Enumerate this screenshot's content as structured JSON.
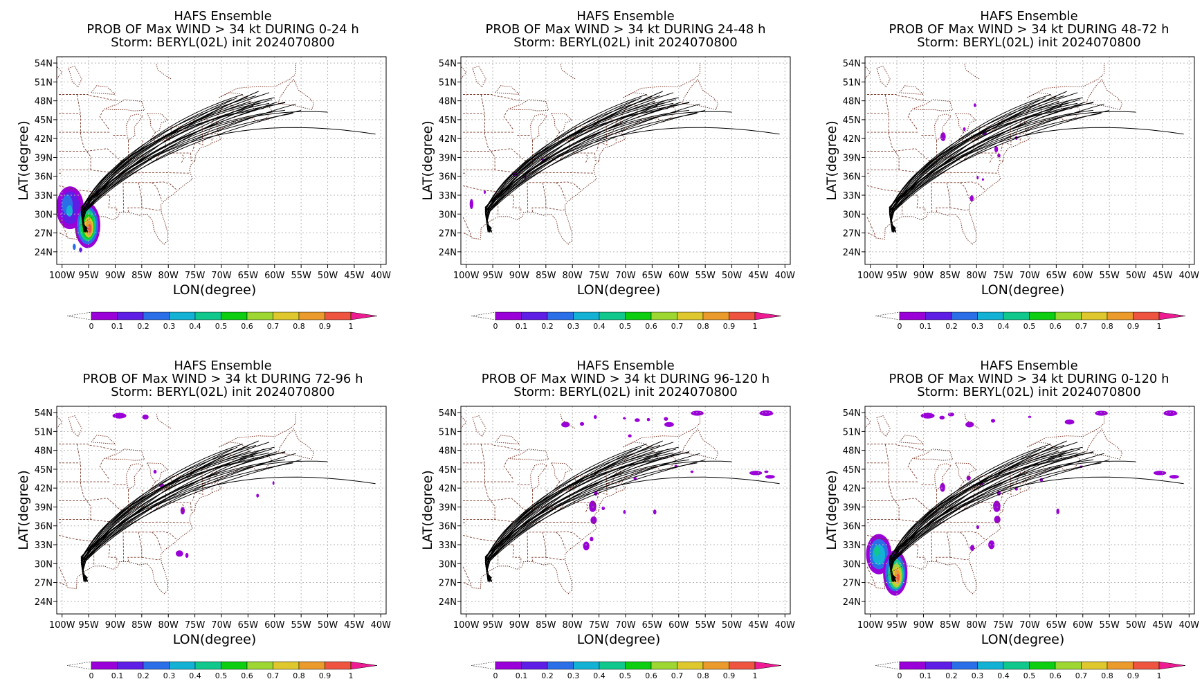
{
  "figure": {
    "panels": [
      {
        "title1": "HAFS Ensemble",
        "title2": "PROB OF Max WIND > 34 kt DURING  0-24 h",
        "title3": "Storm: BERYL(02L) init 2024070800",
        "xlabel": "LON(degree)",
        "ylabel": "LAT(degree)"
      },
      {
        "title1": "HAFS Ensemble",
        "title2": "PROB OF Max WIND > 34 kt DURING 24-48 h",
        "title3": "Storm: BERYL(02L) init 2024070800",
        "xlabel": "LON(degree)",
        "ylabel": "LAT(degree)"
      },
      {
        "title1": "HAFS Ensemble",
        "title2": "PROB OF Max WIND > 34 kt DURING 48-72 h",
        "title3": "Storm: BERYL(02L) init 2024070800",
        "xlabel": "LON(degree)",
        "ylabel": "LAT(degree)"
      },
      {
        "title1": "HAFS Ensemble",
        "title2": "PROB OF Max WIND > 34 kt DURING 72-96 h",
        "title3": "Storm: BERYL(02L) init 2024070800",
        "xlabel": "LON(degree)",
        "ylabel": "LAT(degree)"
      },
      {
        "title1": "HAFS Ensemble",
        "title2": "PROB OF Max WIND > 34 kt DURING 96-120 h",
        "title3": "Storm: BERYL(02L) init 2024070800",
        "xlabel": "LON(degree)",
        "ylabel": "LAT(degree)"
      },
      {
        "title1": "HAFS Ensemble",
        "title2": "PROB OF Max WIND > 34 kt DURING 0-120 h",
        "title3": "Storm: BERYL(02L) init 2024070800",
        "xlabel": "LON(degree)",
        "ylabel": "LAT(degree)"
      }
    ],
    "lon_ticks": [
      "100W",
      "95W",
      "90W",
      "85W",
      "80W",
      "75W",
      "70W",
      "65W",
      "60W",
      "55W",
      "50W",
      "45W",
      "40W"
    ],
    "lat_ticks": [
      "54N",
      "51N",
      "48N",
      "45N",
      "42N",
      "39N",
      "36N",
      "33N",
      "30N",
      "27N",
      "24N"
    ],
    "lon_values": [
      -100,
      -95,
      -90,
      -85,
      -80,
      -75,
      -70,
      -65,
      -60,
      -55,
      -50,
      -45,
      -40
    ],
    "lat_values": [
      54,
      51,
      48,
      45,
      42,
      39,
      36,
      33,
      30,
      27,
      24
    ],
    "colorbar": {
      "labels": [
        "0",
        "0.1",
        "0.2",
        "0.3",
        "0.4",
        "0.5",
        "0.6",
        "0.7",
        "0.8",
        "0.9",
        "1"
      ],
      "colors": [
        "#9a00d8",
        "#5f1ee6",
        "#2a6fe8",
        "#13b2d4",
        "#10c78c",
        "#0ece12",
        "#9ed632",
        "#dfc82e",
        "#eb9a2c",
        "#ee5440"
      ],
      "over_color": "#ee1b93"
    },
    "colors": {
      "coast": "#7a3a2a",
      "grid": "#b8b8b8",
      "track": "#000000"
    }
  }
}
